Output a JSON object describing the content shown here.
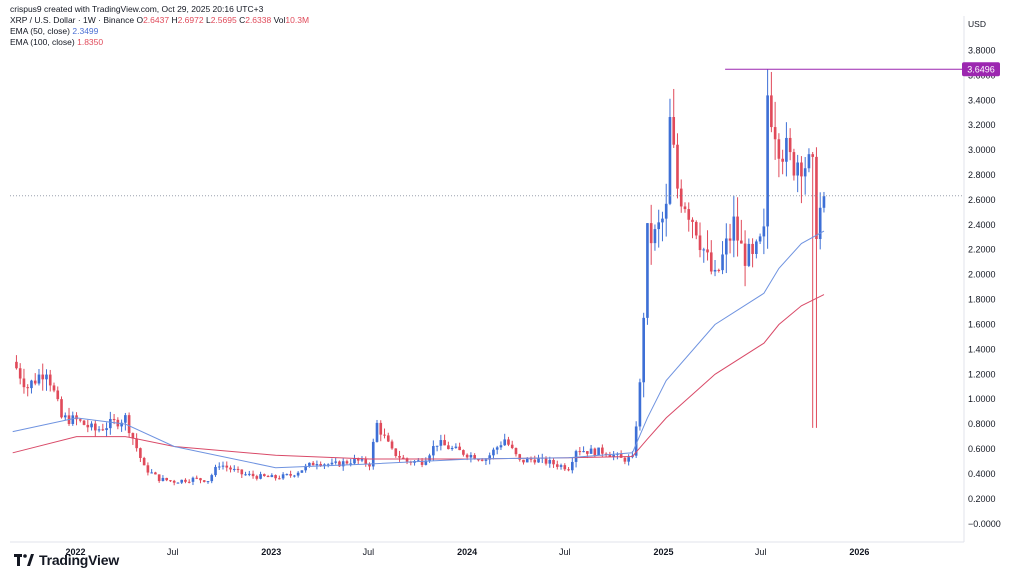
{
  "header": {
    "created_by": "crispus9 created with TradingView.com, Oct 29, 2025 20:16 UTC+3",
    "symbol": "XRP / U.S. Dollar · 1W · Binance",
    "open_label": "O",
    "open": "2.6437",
    "high_label": "H",
    "high": "2.6972",
    "low_label": "L",
    "low": "2.5695",
    "close_label": "C",
    "close": "2.6338",
    "vol_label": "Vol",
    "vol": "10.3M",
    "ema50_label": "EMA (50, close)",
    "ema50_value": "2.3499",
    "ema100_label": "EMA (100, close)",
    "ema100_value": "1.8350"
  },
  "currency": "USD",
  "footer": {
    "brand": "TradingView",
    "logo_icon": "tradingview-logo-icon"
  },
  "colors": {
    "up": "#3d6fd6",
    "down": "#e04a5a",
    "ema50": "#6f93e0",
    "ema100": "#d94a68",
    "marker": "#9c27b0"
  },
  "chart_data": {
    "type": "candlestick",
    "interval": "1W",
    "ylim": [
      -0.05,
      3.9
    ],
    "y_ticks": [
      3.8,
      3.6,
      3.4,
      3.2,
      3.0,
      2.8,
      2.6,
      2.4,
      2.2,
      2.0,
      1.8,
      1.6,
      1.4,
      1.2,
      1.0,
      0.8,
      0.6,
      0.4,
      0.2,
      0.0
    ],
    "y_tick_labels": [
      "3.8000",
      "3.6000",
      "3.4000",
      "3.2000",
      "3.0000",
      "2.8000",
      "2.6000",
      "2.4000",
      "2.2000",
      "2.0000",
      "1.8000",
      "1.6000",
      "1.4000",
      "1.2000",
      "1.0000",
      "0.8000",
      "0.6000",
      "0.4000",
      "0.2000",
      "−0.0000"
    ],
    "x_range": [
      "2021-09-01",
      "2026-07-15"
    ],
    "x_ticks": [
      {
        "date": "2022-01-01",
        "label": "2022"
      },
      {
        "date": "2022-07-01",
        "label": "Jul"
      },
      {
        "date": "2023-01-01",
        "label": "2023"
      },
      {
        "date": "2023-07-01",
        "label": "Jul"
      },
      {
        "date": "2024-01-01",
        "label": "2024"
      },
      {
        "date": "2024-07-01",
        "label": "Jul"
      },
      {
        "date": "2025-01-01",
        "label": "2025"
      },
      {
        "date": "2025-07-01",
        "label": "Jul"
      },
      {
        "date": "2026-01-01",
        "label": "2026"
      }
    ],
    "current_price": 2.6338,
    "high_marker": {
      "value": 3.6496,
      "label": "3.6496",
      "from": "2025-06-30"
    },
    "anchors": [
      [
        "2021-09-06",
        1.3
      ],
      [
        "2021-10-04",
        1.1
      ],
      [
        "2021-11-08",
        1.25
      ],
      [
        "2021-12-06",
        0.85
      ],
      [
        "2022-01-03",
        0.83
      ],
      [
        "2022-02-07",
        0.75
      ],
      [
        "2022-03-07",
        0.8
      ],
      [
        "2022-04-04",
        0.85
      ],
      [
        "2022-05-09",
        0.45
      ],
      [
        "2022-06-06",
        0.36
      ],
      [
        "2022-07-04",
        0.34
      ],
      [
        "2022-08-08",
        0.36
      ],
      [
        "2022-09-05",
        0.35
      ],
      [
        "2022-09-26",
        0.48
      ],
      [
        "2022-11-07",
        0.4
      ],
      [
        "2022-12-05",
        0.38
      ],
      [
        "2023-01-09",
        0.37
      ],
      [
        "2023-02-06",
        0.39
      ],
      [
        "2023-03-27",
        0.5
      ],
      [
        "2023-04-24",
        0.47
      ],
      [
        "2023-06-05",
        0.51
      ],
      [
        "2023-07-03",
        0.48
      ],
      [
        "2023-07-17",
        0.8
      ],
      [
        "2023-08-14",
        0.58
      ],
      [
        "2023-09-11",
        0.5
      ],
      [
        "2023-10-09",
        0.5
      ],
      [
        "2023-11-06",
        0.65
      ],
      [
        "2023-12-04",
        0.6
      ],
      [
        "2024-01-08",
        0.55
      ],
      [
        "2024-02-05",
        0.52
      ],
      [
        "2024-03-11",
        0.68
      ],
      [
        "2024-04-08",
        0.5
      ],
      [
        "2024-05-06",
        0.52
      ],
      [
        "2024-06-03",
        0.49
      ],
      [
        "2024-07-08",
        0.45
      ],
      [
        "2024-07-22",
        0.6
      ],
      [
        "2024-08-19",
        0.58
      ],
      [
        "2024-09-16",
        0.58
      ],
      [
        "2024-10-14",
        0.52
      ],
      [
        "2024-11-04",
        0.52
      ],
      [
        "2024-11-18",
        1.1
      ],
      [
        "2024-12-02",
        2.3
      ],
      [
        "2024-12-16",
        2.3
      ],
      [
        "2025-01-06",
        2.5
      ],
      [
        "2025-01-13",
        3.2
      ],
      [
        "2025-01-27",
        2.7
      ],
      [
        "2025-02-10",
        2.6
      ],
      [
        "2025-03-03",
        2.4
      ],
      [
        "2025-03-24",
        2.1
      ],
      [
        "2025-04-07",
        1.95
      ],
      [
        "2025-05-12",
        2.4
      ],
      [
        "2025-05-26",
        2.2
      ],
      [
        "2025-06-16",
        2.1
      ],
      [
        "2025-07-07",
        2.3
      ],
      [
        "2025-07-14",
        3.45
      ],
      [
        "2025-08-04",
        3.1
      ],
      [
        "2025-08-25",
        2.9
      ],
      [
        "2025-09-15",
        2.95
      ],
      [
        "2025-10-06",
        2.8
      ],
      [
        "2025-10-13",
        2.4
      ],
      [
        "2025-10-27",
        2.63
      ]
    ],
    "ema50": [
      [
        "2021-09-06",
        0.74
      ],
      [
        "2022-01-03",
        0.85
      ],
      [
        "2022-04-04",
        0.8
      ],
      [
        "2022-07-04",
        0.62
      ],
      [
        "2023-01-09",
        0.45
      ],
      [
        "2023-07-03",
        0.48
      ],
      [
        "2024-01-08",
        0.52
      ],
      [
        "2024-07-08",
        0.53
      ],
      [
        "2024-11-04",
        0.57
      ],
      [
        "2024-12-02",
        0.85
      ],
      [
        "2025-01-06",
        1.15
      ],
      [
        "2025-04-07",
        1.6
      ],
      [
        "2025-07-07",
        1.85
      ],
      [
        "2025-08-04",
        2.05
      ],
      [
        "2025-09-15",
        2.25
      ],
      [
        "2025-10-27",
        2.35
      ]
    ],
    "ema100": [
      [
        "2021-09-06",
        0.57
      ],
      [
        "2022-01-03",
        0.7
      ],
      [
        "2022-04-04",
        0.7
      ],
      [
        "2022-07-04",
        0.62
      ],
      [
        "2023-01-09",
        0.55
      ],
      [
        "2023-07-03",
        0.52
      ],
      [
        "2024-01-08",
        0.52
      ],
      [
        "2024-07-08",
        0.53
      ],
      [
        "2024-11-04",
        0.54
      ],
      [
        "2024-12-02",
        0.68
      ],
      [
        "2025-01-06",
        0.85
      ],
      [
        "2025-04-07",
        1.2
      ],
      [
        "2025-07-07",
        1.45
      ],
      [
        "2025-08-04",
        1.6
      ],
      [
        "2025-09-15",
        1.75
      ],
      [
        "2025-10-27",
        1.84
      ]
    ]
  }
}
